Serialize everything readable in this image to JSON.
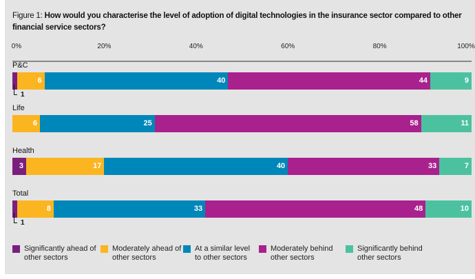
{
  "chart_data": {
    "type": "bar",
    "orientation": "horizontal-stacked",
    "title_prefix": "Figure 1:",
    "title": "How would you characterise the level of adoption of digital technologies in the insurance sector compared to other financial service sectors?",
    "xlim": [
      0,
      100
    ],
    "ticks": [
      "0%",
      "20%",
      "40%",
      "60%",
      "80%",
      "100%"
    ],
    "grid": false,
    "legend_position": "bottom",
    "categories": [
      "P&C",
      "Life",
      "Health",
      "Total"
    ],
    "series": [
      {
        "name": "Significantly ahead of other sectors",
        "color": "#7a1f7e",
        "values": [
          1,
          0,
          3,
          1
        ]
      },
      {
        "name": "Moderately ahead of other sectors",
        "color": "#fbb520",
        "values": [
          6,
          6,
          17,
          8
        ]
      },
      {
        "name": "At a similar level to other sectors",
        "color": "#0087b9",
        "values": [
          40,
          25,
          40,
          33
        ]
      },
      {
        "name": "Moderately behind other sectors",
        "color": "#a8218d",
        "values": [
          44,
          58,
          33,
          48
        ]
      },
      {
        "name": "Significantly behind other sectors",
        "color": "#4cc1a0",
        "values": [
          9,
          11,
          7,
          10
        ]
      }
    ]
  }
}
